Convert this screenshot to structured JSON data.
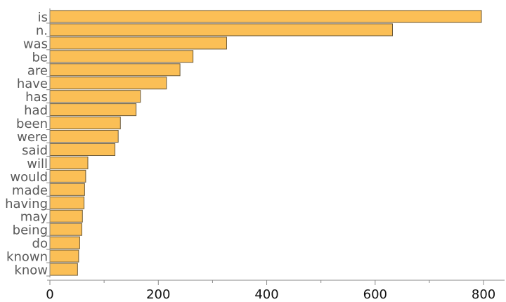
{
  "chart_data": {
    "type": "bar",
    "orientation": "horizontal",
    "title": "",
    "xlabel": "",
    "ylabel": "",
    "categories": [
      "is",
      "n.",
      "was",
      "be",
      "are",
      "have",
      "has",
      "had",
      "been",
      "were",
      "said",
      "will",
      "would",
      "made",
      "having",
      "may",
      "being",
      "do",
      "known",
      "know"
    ],
    "values": [
      796,
      632,
      326,
      264,
      240,
      215,
      167,
      159,
      130,
      126,
      120,
      70,
      66,
      64,
      63,
      60,
      59,
      55,
      53,
      51
    ],
    "xlim": [
      0,
      840
    ],
    "xticks": [
      0,
      200,
      400,
      600,
      800
    ],
    "xtick_labels": [
      "0",
      "200",
      "400",
      "600",
      "800"
    ],
    "minor_tick_step": 100,
    "grid": false,
    "bar_color": "#fbbf56",
    "bar_edge_color": "#6b5a3a",
    "axis_color": "#888888"
  }
}
